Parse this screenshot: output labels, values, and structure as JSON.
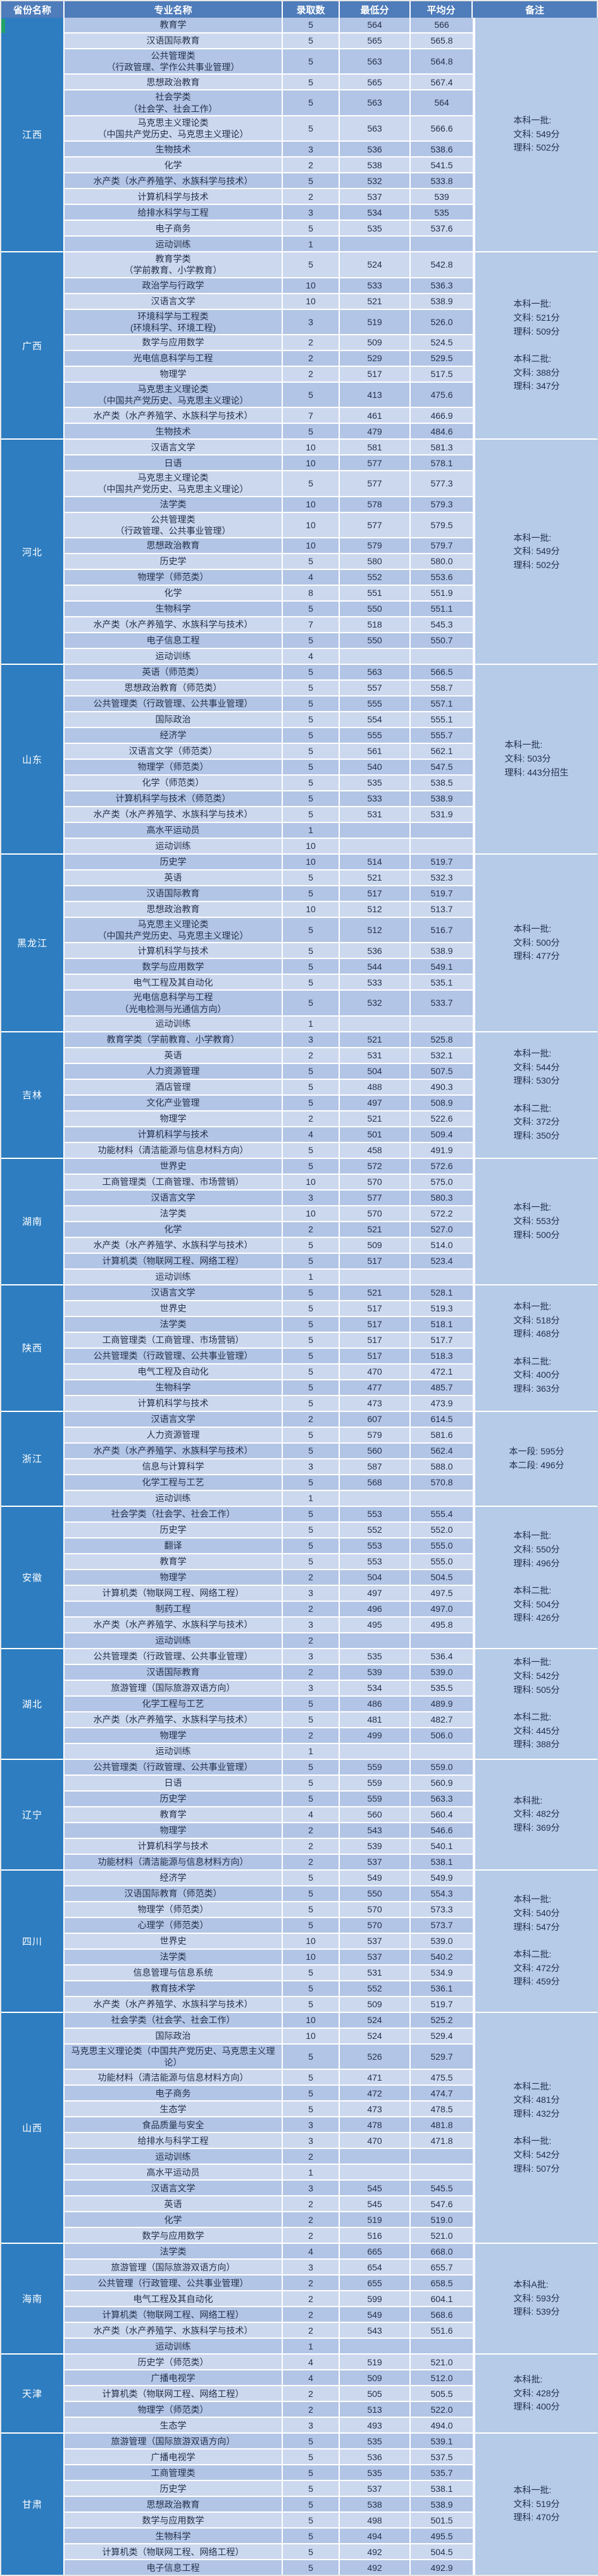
{
  "colors": {
    "header_bg": "#4f7cba",
    "province_bg": "#2e7dc0",
    "row_dark": "#b2c5e6",
    "row_light": "#ccd8ee",
    "remark_bg": "#b5cbe7",
    "accent_green": "#21a366"
  },
  "table": {
    "headers": [
      "省份名称",
      "专业名称",
      "录取数",
      "最低分",
      "平均分",
      "备注"
    ],
    "provinces": [
      {
        "name": "江西",
        "remark": "本科一批:\n文科: 549分\n理科: 502分",
        "rows": [
          [
            "教育学",
            "5",
            "564",
            "566"
          ],
          [
            "汉语国际教育",
            "5",
            "565",
            "565.8"
          ],
          [
            "公共管理类\n（行政管理、学作公共事业管理）",
            "5",
            "563",
            "564.8"
          ],
          [
            "思想政治教育",
            "5",
            "565",
            "567.4"
          ],
          [
            "社会学类\n（社会学、社会工作）",
            "5",
            "563",
            "564"
          ],
          [
            "马克思主义理论类\n（中国共产党历史、马克思主义理论）",
            "5",
            "563",
            "566.6"
          ],
          [
            "生物技术",
            "3",
            "536",
            "538.6"
          ],
          [
            "化学",
            "2",
            "538",
            "541.5"
          ],
          [
            "水产类（水产养殖学、水族科学与技术）",
            "5",
            "532",
            "533.8"
          ],
          [
            "计算机科学与技术",
            "2",
            "537",
            "539"
          ],
          [
            "给排水科学与工程",
            "3",
            "534",
            "535"
          ],
          [
            "电子商务",
            "5",
            "535",
            "537.6"
          ],
          [
            "运动训练",
            "1",
            "",
            ""
          ]
        ]
      },
      {
        "name": "广西",
        "remark": "本科一批:\n文科: 521分\n理科: 509分\n\n本科二批:\n文科: 388分\n理科: 347分",
        "rows": [
          [
            "教育学类\n（学前教育、小学教育）",
            "5",
            "524",
            "542.8"
          ],
          [
            "政治学与行政学",
            "10",
            "533",
            "536.3"
          ],
          [
            "汉语言文学",
            "10",
            "521",
            "538.9"
          ],
          [
            "环境科学与工程类\n(环境科学、环境工程)",
            "3",
            "519",
            "526.0"
          ],
          [
            "数学与应用数学",
            "2",
            "509",
            "524.5"
          ],
          [
            "光电信息科学与工程",
            "2",
            "529",
            "529.5"
          ],
          [
            "物理学",
            "2",
            "517",
            "517.5"
          ],
          [
            "马克思主义理论类\n（中国共产党历史、马克思主义理论）",
            "5",
            "413",
            "475.6"
          ],
          [
            "水产类（水产养殖学、水族科学与技术）",
            "7",
            "461",
            "466.9"
          ],
          [
            "生物技术",
            "5",
            "479",
            "484.6"
          ]
        ]
      },
      {
        "name": "河北",
        "remark": "本科一批:\n文科: 549分\n理科: 502分",
        "rows": [
          [
            "汉语言文学",
            "10",
            "581",
            "581.3"
          ],
          [
            "日语",
            "10",
            "577",
            "578.1"
          ],
          [
            "马克思主义理论类\n（中国共产党历史、马克思主义理论）",
            "5",
            "577",
            "577.3"
          ],
          [
            "法学类",
            "10",
            "578",
            "579.3"
          ],
          [
            "公共管理类\n（行政管理、公共事业管理）",
            "10",
            "577",
            "579.5"
          ],
          [
            "思想政治教育",
            "10",
            "579",
            "579.7"
          ],
          [
            "历史学",
            "5",
            "580",
            "580.0"
          ],
          [
            "物理学（师范类）",
            "4",
            "552",
            "553.6"
          ],
          [
            "化学",
            "8",
            "551",
            "551.9"
          ],
          [
            "生物科学",
            "5",
            "550",
            "551.1"
          ],
          [
            "水产类（水产养殖学、水族科学与技术）",
            "7",
            "518",
            "545.3"
          ],
          [
            "电子信息工程",
            "5",
            "550",
            "550.7"
          ],
          [
            "运动训练",
            "4",
            "",
            ""
          ]
        ]
      },
      {
        "name": "山东",
        "remark": "本科一批:\n文科: 503分\n理科: 443分招生",
        "rows": [
          [
            "英语（师范类）",
            "5",
            "563",
            "566.5"
          ],
          [
            "思想政治教育（师范类）",
            "5",
            "557",
            "558.7"
          ],
          [
            "公共管理类（行政管理、公共事业管理）",
            "5",
            "555",
            "557.1"
          ],
          [
            "国际政治",
            "5",
            "554",
            "555.1"
          ],
          [
            "经济学",
            "5",
            "555",
            "555.7"
          ],
          [
            "汉语言文学（师范类）",
            "5",
            "561",
            "562.1"
          ],
          [
            "物理学（师范类）",
            "5",
            "540",
            "547.5"
          ],
          [
            "化学（师范类）",
            "5",
            "535",
            "538.5"
          ],
          [
            "计算机科学与技术（师范类）",
            "5",
            "533",
            "538.9"
          ],
          [
            "水产类（水产养殖学、水族科学与技术）",
            "5",
            "531",
            "531.9"
          ],
          [
            "高水平运动员",
            "1",
            "",
            ""
          ],
          [
            "运动训练",
            "10",
            "",
            ""
          ]
        ]
      },
      {
        "name": "黑龙江",
        "remark": "本科一批:\n文科: 500分\n理科: 477分",
        "rows": [
          [
            "历史学",
            "10",
            "514",
            "519.7"
          ],
          [
            "英语",
            "5",
            "521",
            "532.3"
          ],
          [
            "汉语国际教育",
            "5",
            "517",
            "519.7"
          ],
          [
            "思想政治教育",
            "10",
            "512",
            "513.7"
          ],
          [
            "马克思主义理论类\n（中国共产党历史、马克思主义理论）",
            "5",
            "512",
            "516.7"
          ],
          [
            "计算机科学与技术",
            "5",
            "536",
            "538.9"
          ],
          [
            "数学与应用数学",
            "5",
            "544",
            "549.1"
          ],
          [
            "电气工程及其自动化",
            "5",
            "533",
            "535.1"
          ],
          [
            "光电信息科学与工程\n（光电检测与光通信方向）",
            "5",
            "532",
            "533.7"
          ],
          [
            "运动训练",
            "1",
            "",
            ""
          ]
        ]
      },
      {
        "name": "吉林",
        "remark": "本科一批:\n文科: 544分\n理科: 530分\n\n本科二批:\n文科: 372分\n理科: 350分",
        "rows": [
          [
            "教育学类（学前教育、小学教育）",
            "3",
            "521",
            "525.8"
          ],
          [
            "英语",
            "2",
            "531",
            "532.1"
          ],
          [
            "人力资源管理",
            "5",
            "504",
            "507.5"
          ],
          [
            "酒店管理",
            "5",
            "488",
            "490.3"
          ],
          [
            "文化产业管理",
            "5",
            "497",
            "508.9"
          ],
          [
            "物理学",
            "2",
            "521",
            "522.6"
          ],
          [
            "计算机科学与技术",
            "4",
            "501",
            "509.4"
          ],
          [
            "功能材料（清洁能源与信息材料方向）",
            "5",
            "458",
            "491.9"
          ]
        ]
      },
      {
        "name": "湖南",
        "remark": "本科一批:\n文科: 553分\n理科: 500分",
        "rows": [
          [
            "世界史",
            "5",
            "572",
            "572.6"
          ],
          [
            "工商管理类（工商管理、市场营销）",
            "10",
            "570",
            "575.0"
          ],
          [
            "汉语言文学",
            "3",
            "577",
            "580.3"
          ],
          [
            "法学类",
            "10",
            "570",
            "572.2"
          ],
          [
            "化学",
            "2",
            "521",
            "527.0"
          ],
          [
            "水产类（水产养殖学、水族科学与技术）",
            "5",
            "509",
            "514.0"
          ],
          [
            "计算机类（物联网工程、网络工程）",
            "5",
            "517",
            "523.4"
          ],
          [
            "运动训练",
            "1",
            "",
            ""
          ]
        ]
      },
      {
        "name": "陕西",
        "remark": "本科一批:\n文科: 518分\n理科: 468分\n\n本科二批:\n文科: 400分\n理科: 363分",
        "rows": [
          [
            "汉语言文学",
            "5",
            "521",
            "528.1"
          ],
          [
            "世界史",
            "5",
            "517",
            "519.3"
          ],
          [
            "法学类",
            "5",
            "517",
            "518.1"
          ],
          [
            "工商管理类（工商管理、市场营销）",
            "5",
            "517",
            "517.7"
          ],
          [
            "公共管理类（行政管理、公共事业管理）",
            "5",
            "517",
            "518.3"
          ],
          [
            "电气工程及自动化",
            "5",
            "470",
            "472.1"
          ],
          [
            "生物科学",
            "5",
            "477",
            "485.7"
          ],
          [
            "计算机科学与技术",
            "5",
            "473",
            "473.9"
          ]
        ]
      },
      {
        "name": "浙江",
        "remark": "本一段: 595分\n本二段: 496分",
        "rows": [
          [
            "汉语言文学",
            "2",
            "607",
            "614.5"
          ],
          [
            "人力资源管理",
            "5",
            "579",
            "581.6"
          ],
          [
            "水产类（水产养殖学、水族科学与技术）",
            "5",
            "560",
            "562.4"
          ],
          [
            "信息与计算科学",
            "3",
            "587",
            "588.0"
          ],
          [
            "化学工程与工艺",
            "5",
            "568",
            "570.8"
          ],
          [
            "运动训练",
            "1",
            "",
            ""
          ]
        ]
      },
      {
        "name": "安徽",
        "remark": "本科一批:\n文科: 550分\n理科: 496分\n\n本科二批:\n文科: 504分\n理科: 426分",
        "rows": [
          [
            "社会学类（社会学、社会工作）",
            "5",
            "553",
            "555.4"
          ],
          [
            "历史学",
            "5",
            "552",
            "552.0"
          ],
          [
            "翻译",
            "5",
            "553",
            "555.0"
          ],
          [
            "教育学",
            "5",
            "553",
            "555.0"
          ],
          [
            "物理学",
            "2",
            "504",
            "504.5"
          ],
          [
            "计算机类（物联网工程、网络工程）",
            "3",
            "497",
            "497.5"
          ],
          [
            "制药工程",
            "2",
            "496",
            "497.0"
          ],
          [
            "水产类（水产养殖学、水族科学与技术）",
            "3",
            "495",
            "495.8"
          ],
          [
            "运动训练",
            "2",
            "",
            ""
          ]
        ]
      },
      {
        "name": "湖北",
        "remark": "本科一批:\n文科: 542分\n理科: 505分\n\n本科二批:\n文科: 445分\n理科: 388分",
        "rows": [
          [
            "公共管理类（行政管理、公共事业管理）",
            "3",
            "535",
            "536.4"
          ],
          [
            "汉语国际教育",
            "2",
            "539",
            "539.0"
          ],
          [
            "旅游管理（国际旅游双语方向）",
            "3",
            "534",
            "535.5"
          ],
          [
            "化学工程与工艺",
            "5",
            "486",
            "489.9"
          ],
          [
            "水产类（水产养殖学、水族科学与技术）",
            "5",
            "481",
            "482.7"
          ],
          [
            "物理学",
            "2",
            "499",
            "506.0"
          ],
          [
            "运动训练",
            "1",
            "",
            ""
          ]
        ]
      },
      {
        "name": "辽宁",
        "remark": "本科批:\n文科: 482分\n理科: 369分",
        "rows": [
          [
            "公共管理类（行政管理、公共事业管理）",
            "5",
            "559",
            "559.0"
          ],
          [
            "日语",
            "5",
            "559",
            "560.9"
          ],
          [
            "历史学",
            "5",
            "559",
            "563.3"
          ],
          [
            "教育学",
            "4",
            "560",
            "560.4"
          ],
          [
            "物理学",
            "2",
            "543",
            "546.6"
          ],
          [
            "计算机科学与技术",
            "2",
            "539",
            "540.1"
          ],
          [
            "功能材料（清洁能源与信息材料方向）",
            "2",
            "537",
            "538.1"
          ]
        ]
      },
      {
        "name": "四川",
        "remark": "本科一批:\n文科: 540分\n理科: 547分\n\n本科二批:\n文科: 472分\n理科: 459分",
        "rows": [
          [
            "经济学",
            "5",
            "549",
            "549.9"
          ],
          [
            "汉语国际教育（师范类）",
            "5",
            "550",
            "554.3"
          ],
          [
            "物理学（师范类）",
            "5",
            "570",
            "573.3"
          ],
          [
            "心理学（师范类）",
            "5",
            "570",
            "573.7"
          ],
          [
            "世界史",
            "10",
            "537",
            "539.0"
          ],
          [
            "法学类",
            "10",
            "537",
            "540.2"
          ],
          [
            "信息管理与信息系统",
            "5",
            "531",
            "534.9"
          ],
          [
            "教育技术学",
            "5",
            "552",
            "536.1"
          ],
          [
            "水产类（水产养殖学、水族科学与技术）",
            "5",
            "509",
            "519.7"
          ]
        ]
      },
      {
        "name": "山西",
        "remark": "本科二批:\n文科: 481分\n理科: 432分\n\n本科一批:\n文科: 542分\n理科: 507分",
        "rows": [
          [
            "社会学类（社会学、社会工作）",
            "10",
            "524",
            "525.2"
          ],
          [
            "国际政治",
            "10",
            "524",
            "529.4"
          ],
          [
            "马克思主义理论类（中国共产党历史、马克思主义理论）",
            "5",
            "526",
            "529.7"
          ],
          [
            "功能材料（清洁能源与信息材料方向）",
            "5",
            "471",
            "475.5"
          ],
          [
            "电子商务",
            "5",
            "472",
            "474.7"
          ],
          [
            "生态学",
            "5",
            "473",
            "478.5"
          ],
          [
            "食品质量与安全",
            "3",
            "478",
            "481.8"
          ],
          [
            "给排水与科学工程",
            "3",
            "470",
            "471.8"
          ],
          [
            "运动训练",
            "2",
            "",
            ""
          ],
          [
            "高水平运动员",
            "1",
            "",
            ""
          ],
          [
            "汉语言文学",
            "3",
            "545",
            "545.5"
          ],
          [
            "英语",
            "2",
            "545",
            "547.6"
          ],
          [
            "化学",
            "2",
            "519",
            "519.0"
          ],
          [
            "数学与应用数学",
            "2",
            "516",
            "521.0"
          ]
        ]
      },
      {
        "name": "海南",
        "remark": "本科A批:\n文科: 593分\n理科: 539分",
        "rows": [
          [
            "法学类",
            "4",
            "665",
            "668.0"
          ],
          [
            "旅游管理（国际旅游双语方向）",
            "3",
            "654",
            "655.7"
          ],
          [
            "公共管理（行政管理、公共事业管理）",
            "2",
            "655",
            "658.5"
          ],
          [
            "电气工程及其自动化",
            "2",
            "599",
            "604.1"
          ],
          [
            "计算机类（物联网工程、网络工程）",
            "2",
            "549",
            "568.6"
          ],
          [
            "水产类（水产养殖学、水族科学与技术）",
            "2",
            "543",
            "551.6"
          ],
          [
            "运动训练",
            "1",
            "",
            ""
          ]
        ]
      },
      {
        "name": "天津",
        "remark": "本科批:\n文科: 428分\n理科: 400分",
        "rows": [
          [
            "历史学（师范类）",
            "4",
            "519",
            "521.0"
          ],
          [
            "广播电视学",
            "4",
            "509",
            "512.0"
          ],
          [
            "计算机类（物联网工程、网络工程）",
            "2",
            "505",
            "505.5"
          ],
          [
            "物理学（师范类）",
            "2",
            "513",
            "522.0"
          ],
          [
            "生态学",
            "3",
            "493",
            "494.0"
          ]
        ]
      },
      {
        "name": "甘肃",
        "remark": "本科一批:\n文科: 519分\n理科: 470分",
        "rows": [
          [
            "旅游管理（国际旅游双语方向）",
            "5",
            "535",
            "539.1"
          ],
          [
            "广播电视学",
            "5",
            "536",
            "537.5"
          ],
          [
            "工商管理类",
            "5",
            "535",
            "535.7"
          ],
          [
            "历史学",
            "5",
            "537",
            "538.1"
          ],
          [
            "思想政治教育",
            "5",
            "538",
            "538.9"
          ],
          [
            "数学与应用数学",
            "5",
            "498",
            "501.5"
          ],
          [
            "生物科学",
            "5",
            "494",
            "495.5"
          ],
          [
            "计算机类（物联网工程、网络工程）",
            "5",
            "492",
            "504.5"
          ],
          [
            "电子信息工程",
            "5",
            "492",
            "492.9"
          ]
        ]
      }
    ]
  }
}
